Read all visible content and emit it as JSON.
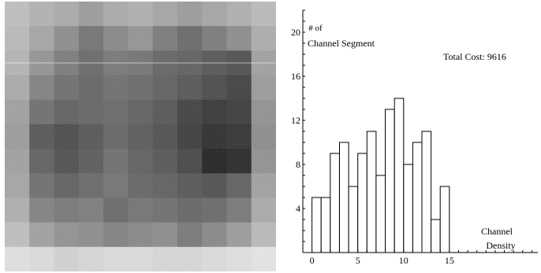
{
  "chart_data": [
    {
      "type": "heatmap",
      "rows": 11,
      "cols": 11,
      "values": [
        [
          0.28,
          0.33,
          0.36,
          0.42,
          0.36,
          0.34,
          0.38,
          0.42,
          0.38,
          0.34,
          0.3
        ],
        [
          0.3,
          0.38,
          0.48,
          0.58,
          0.5,
          0.45,
          0.55,
          0.62,
          0.55,
          0.48,
          0.35
        ],
        [
          0.32,
          0.45,
          0.55,
          0.62,
          0.56,
          0.58,
          0.64,
          0.66,
          0.7,
          0.72,
          0.4
        ],
        [
          0.36,
          0.52,
          0.6,
          0.64,
          0.6,
          0.62,
          0.66,
          0.7,
          0.74,
          0.78,
          0.42
        ],
        [
          0.4,
          0.6,
          0.66,
          0.64,
          0.62,
          0.66,
          0.7,
          0.78,
          0.82,
          0.8,
          0.46
        ],
        [
          0.42,
          0.7,
          0.74,
          0.7,
          0.64,
          0.68,
          0.72,
          0.8,
          0.86,
          0.84,
          0.48
        ],
        [
          0.4,
          0.66,
          0.72,
          0.68,
          0.6,
          0.66,
          0.7,
          0.76,
          0.9,
          0.88,
          0.46
        ],
        [
          0.38,
          0.6,
          0.66,
          0.62,
          0.58,
          0.64,
          0.66,
          0.7,
          0.72,
          0.66,
          0.4
        ],
        [
          0.34,
          0.52,
          0.56,
          0.54,
          0.62,
          0.58,
          0.6,
          0.64,
          0.62,
          0.56,
          0.36
        ],
        [
          0.28,
          0.4,
          0.46,
          0.48,
          0.52,
          0.5,
          0.48,
          0.56,
          0.5,
          0.42,
          0.3
        ],
        [
          0.14,
          0.16,
          0.2,
          0.18,
          0.16,
          0.16,
          0.18,
          0.18,
          0.16,
          0.14,
          0.12
        ]
      ]
    },
    {
      "type": "bar",
      "title": "",
      "ylabel": "# of\nChannel Segment",
      "xlabel": "Channel\nDensity",
      "annotation": "Total Cost: 9616",
      "x": [
        0.5,
        1.5,
        2.5,
        3.5,
        4.5,
        5.5,
        6.5,
        7.5,
        8.5,
        9.5,
        10.5,
        11.5,
        12.5,
        13.5,
        14.5
      ],
      "values": [
        5,
        5,
        9,
        10,
        6,
        9,
        11,
        7,
        13,
        14,
        8,
        10,
        11,
        3,
        6
      ],
      "bar_width": 1,
      "xlim": [
        -1,
        25
      ],
      "ylim": [
        0,
        22
      ],
      "xticks": [
        0,
        5,
        10,
        15
      ],
      "yticks": [
        4,
        8,
        12,
        16,
        20
      ],
      "grid": false
    }
  ]
}
